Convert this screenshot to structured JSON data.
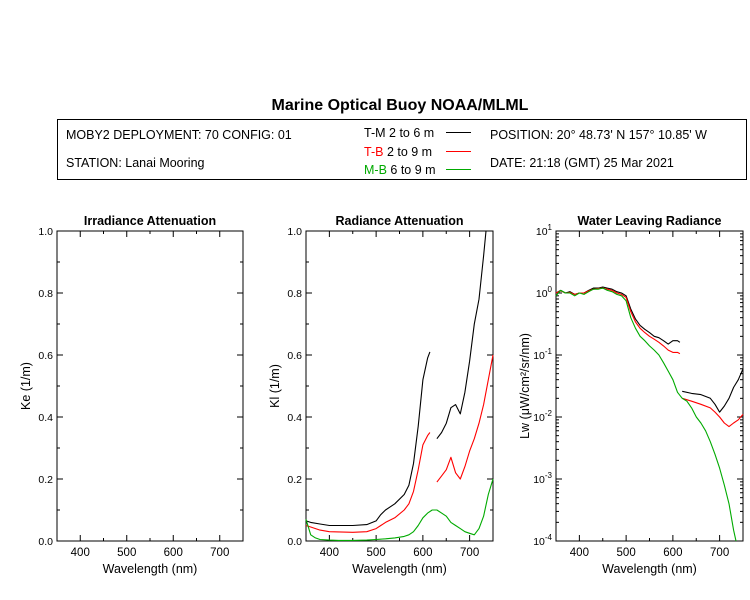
{
  "header": {
    "title": "Marine Optical Buoy NOAA/MLML",
    "deployment": "MOBY2 DEPLOYMENT: 70 CONFIG: 01",
    "station": "STATION: Lanai Mooring",
    "position": "POSITION: 20° 48.73' N   157° 10.85' W",
    "date": "DATE: 21:18 (GMT) 25 Mar 2021"
  },
  "legend": [
    {
      "name": "T-M",
      "range": "2 to 6  m",
      "color": "#000000"
    },
    {
      "name": "T-B",
      "range": "2 to 9  m",
      "color": "#ff0000"
    },
    {
      "name": "M-B",
      "range": "6 to 9  m",
      "color": "#00aa00"
    }
  ],
  "chart_data": [
    {
      "type": "line",
      "title": "Irradiance Attenuation",
      "xlabel": "Wavelength (nm)",
      "ylabel": "Ke  (1/m)",
      "xlim": [
        350,
        750
      ],
      "ylim": [
        0,
        1
      ],
      "xticks": [
        400,
        500,
        600,
        700
      ],
      "yticks": [
        "0.0",
        "0.2",
        "0.4",
        "0.6",
        "0.8",
        "1.0"
      ],
      "series": []
    },
    {
      "type": "line",
      "title": "Radiance Attenuation",
      "xlabel": "Wavelength (nm)",
      "ylabel": "Kl  (1/m)",
      "xlim": [
        350,
        750
      ],
      "ylim": [
        0,
        1
      ],
      "xticks": [
        400,
        500,
        600,
        700
      ],
      "yticks": [
        "0.0",
        "0.2",
        "0.4",
        "0.6",
        "0.8",
        "1.0"
      ],
      "series": [
        {
          "name": "T-M",
          "color": "#000000",
          "segments": [
            {
              "x": [
                350,
                360,
                380,
                400,
                450,
                480,
                500,
                510,
                520,
                540,
                560,
                570,
                580,
                590,
                600,
                610,
                615
              ],
              "y": [
                0.065,
                0.06,
                0.055,
                0.05,
                0.05,
                0.053,
                0.065,
                0.085,
                0.1,
                0.12,
                0.15,
                0.18,
                0.25,
                0.37,
                0.52,
                0.59,
                0.61
              ]
            },
            {
              "x": [
                630,
                640,
                650,
                660,
                670,
                680,
                690,
                700,
                710,
                720,
                725,
                730,
                735
              ],
              "y": [
                0.33,
                0.35,
                0.38,
                0.43,
                0.44,
                0.41,
                0.48,
                0.58,
                0.7,
                0.78,
                0.85,
                0.92,
                1.0
              ]
            }
          ]
        },
        {
          "name": "T-B",
          "color": "#ff0000",
          "segments": [
            {
              "x": [
                350,
                360,
                380,
                400,
                450,
                480,
                500,
                510,
                520,
                540,
                560,
                570,
                580,
                590,
                600,
                610,
                615
              ],
              "y": [
                0.05,
                0.045,
                0.035,
                0.03,
                0.028,
                0.03,
                0.04,
                0.05,
                0.06,
                0.075,
                0.1,
                0.12,
                0.16,
                0.23,
                0.31,
                0.34,
                0.35
              ]
            },
            {
              "x": [
                630,
                640,
                650,
                660,
                670,
                680,
                690,
                700,
                710,
                720,
                730,
                740,
                750
              ],
              "y": [
                0.19,
                0.21,
                0.23,
                0.27,
                0.22,
                0.2,
                0.24,
                0.29,
                0.33,
                0.38,
                0.44,
                0.52,
                0.6
              ]
            }
          ]
        },
        {
          "name": "M-B",
          "color": "#00aa00",
          "segments": [
            {
              "x": [
                350,
                360,
                370,
                380,
                400,
                420,
                450,
                480,
                500,
                520,
                540,
                560,
                570,
                580,
                590,
                600,
                610,
                620,
                630,
                640,
                650,
                660,
                670,
                680,
                690,
                700,
                710,
                720,
                730,
                740,
                750
              ],
              "y": [
                0.07,
                0.02,
                0.01,
                0.005,
                0.003,
                0.002,
                0.002,
                0.003,
                0.005,
                0.007,
                0.01,
                0.015,
                0.02,
                0.03,
                0.05,
                0.075,
                0.09,
                0.1,
                0.1,
                0.09,
                0.08,
                0.06,
                0.05,
                0.04,
                0.03,
                0.025,
                0.02,
                0.04,
                0.08,
                0.15,
                0.2
              ]
            }
          ]
        }
      ]
    },
    {
      "type": "line",
      "title": "Water Leaving Radiance",
      "xlabel": "Wavelength (nm)",
      "ylabel": "Lw  (μW/cm²/sr/nm)",
      "yscale": "log",
      "xlim": [
        350,
        750
      ],
      "ylim": [
        0.0001,
        10
      ],
      "xticks": [
        400,
        500,
        600,
        700
      ],
      "ytick_labels": [
        {
          "base": "10",
          "exp": "1",
          "value": 10
        },
        {
          "base": "10",
          "exp": "0",
          "value": 1
        },
        {
          "base": "10",
          "exp": "-1",
          "value": 0.1
        },
        {
          "base": "10",
          "exp": "-2",
          "value": 0.01
        },
        {
          "base": "10",
          "exp": "-3",
          "value": 0.001
        },
        {
          "base": "10",
          "exp": "-4",
          "value": 0.0001
        }
      ],
      "series": [
        {
          "name": "T-M",
          "color": "#000000",
          "segments": [
            {
              "x": [
                350,
                360,
                370,
                380,
                390,
                400,
                410,
                420,
                430,
                440,
                450,
                460,
                470,
                480,
                490,
                500,
                510,
                520,
                530,
                540,
                550,
                560,
                570,
                580,
                590,
                600,
                610,
                615
              ],
              "y": [
                1.0,
                1.1,
                1.0,
                1.05,
                0.95,
                1.0,
                1.0,
                1.1,
                1.2,
                1.2,
                1.25,
                1.2,
                1.15,
                1.05,
                1.0,
                0.9,
                0.55,
                0.38,
                0.3,
                0.26,
                0.23,
                0.2,
                0.19,
                0.17,
                0.15,
                0.17,
                0.17,
                0.16
              ]
            },
            {
              "x": [
                620,
                640,
                660,
                680,
                690,
                700,
                710,
                720,
                730,
                740,
                750
              ],
              "y": [
                0.026,
                0.024,
                0.023,
                0.02,
                0.016,
                0.012,
                0.015,
                0.02,
                0.03,
                0.04,
                0.06
              ]
            }
          ]
        },
        {
          "name": "T-B",
          "color": "#ff0000",
          "segments": [
            {
              "x": [
                350,
                360,
                370,
                380,
                390,
                400,
                410,
                420,
                430,
                440,
                450,
                460,
                470,
                480,
                490,
                500,
                510,
                520,
                530,
                540,
                550,
                560,
                570,
                580,
                590,
                600,
                610,
                615
              ],
              "y": [
                1.0,
                1.08,
                1.0,
                1.02,
                0.95,
                1.0,
                1.0,
                1.08,
                1.15,
                1.18,
                1.2,
                1.15,
                1.1,
                1.0,
                0.95,
                0.85,
                0.5,
                0.34,
                0.27,
                0.23,
                0.2,
                0.18,
                0.16,
                0.14,
                0.12,
                0.11,
                0.11,
                0.105
              ]
            },
            {
              "x": [
                620,
                640,
                660,
                680,
                690,
                700,
                710,
                720,
                730,
                740,
                750
              ],
              "y": [
                0.02,
                0.018,
                0.016,
                0.014,
                0.012,
                0.01,
                0.008,
                0.007,
                0.008,
                0.009,
                0.011
              ]
            }
          ]
        },
        {
          "name": "M-B",
          "color": "#00aa00",
          "segments": [
            {
              "x": [
                350,
                360,
                370,
                380,
                390,
                400,
                410,
                420,
                430,
                440,
                450,
                460,
                470,
                480,
                490,
                500,
                510,
                520,
                530,
                540,
                550,
                560,
                570,
                580,
                590,
                600,
                610,
                620,
                630,
                640,
                650,
                660,
                670,
                680,
                690,
                700,
                710,
                720,
                730,
                735
              ],
              "y": [
                0.9,
                1.1,
                1.0,
                1.0,
                0.9,
                1.0,
                0.95,
                1.05,
                1.15,
                1.15,
                1.2,
                1.1,
                1.05,
                0.95,
                0.9,
                0.75,
                0.4,
                0.27,
                0.2,
                0.17,
                0.14,
                0.12,
                0.1,
                0.075,
                0.055,
                0.04,
                0.025,
                0.02,
                0.018,
                0.014,
                0.01,
                0.008,
                0.006,
                0.004,
                0.0025,
                0.0015,
                0.0008,
                0.0004,
                0.00015,
                0.0001
              ]
            }
          ]
        }
      ]
    }
  ]
}
